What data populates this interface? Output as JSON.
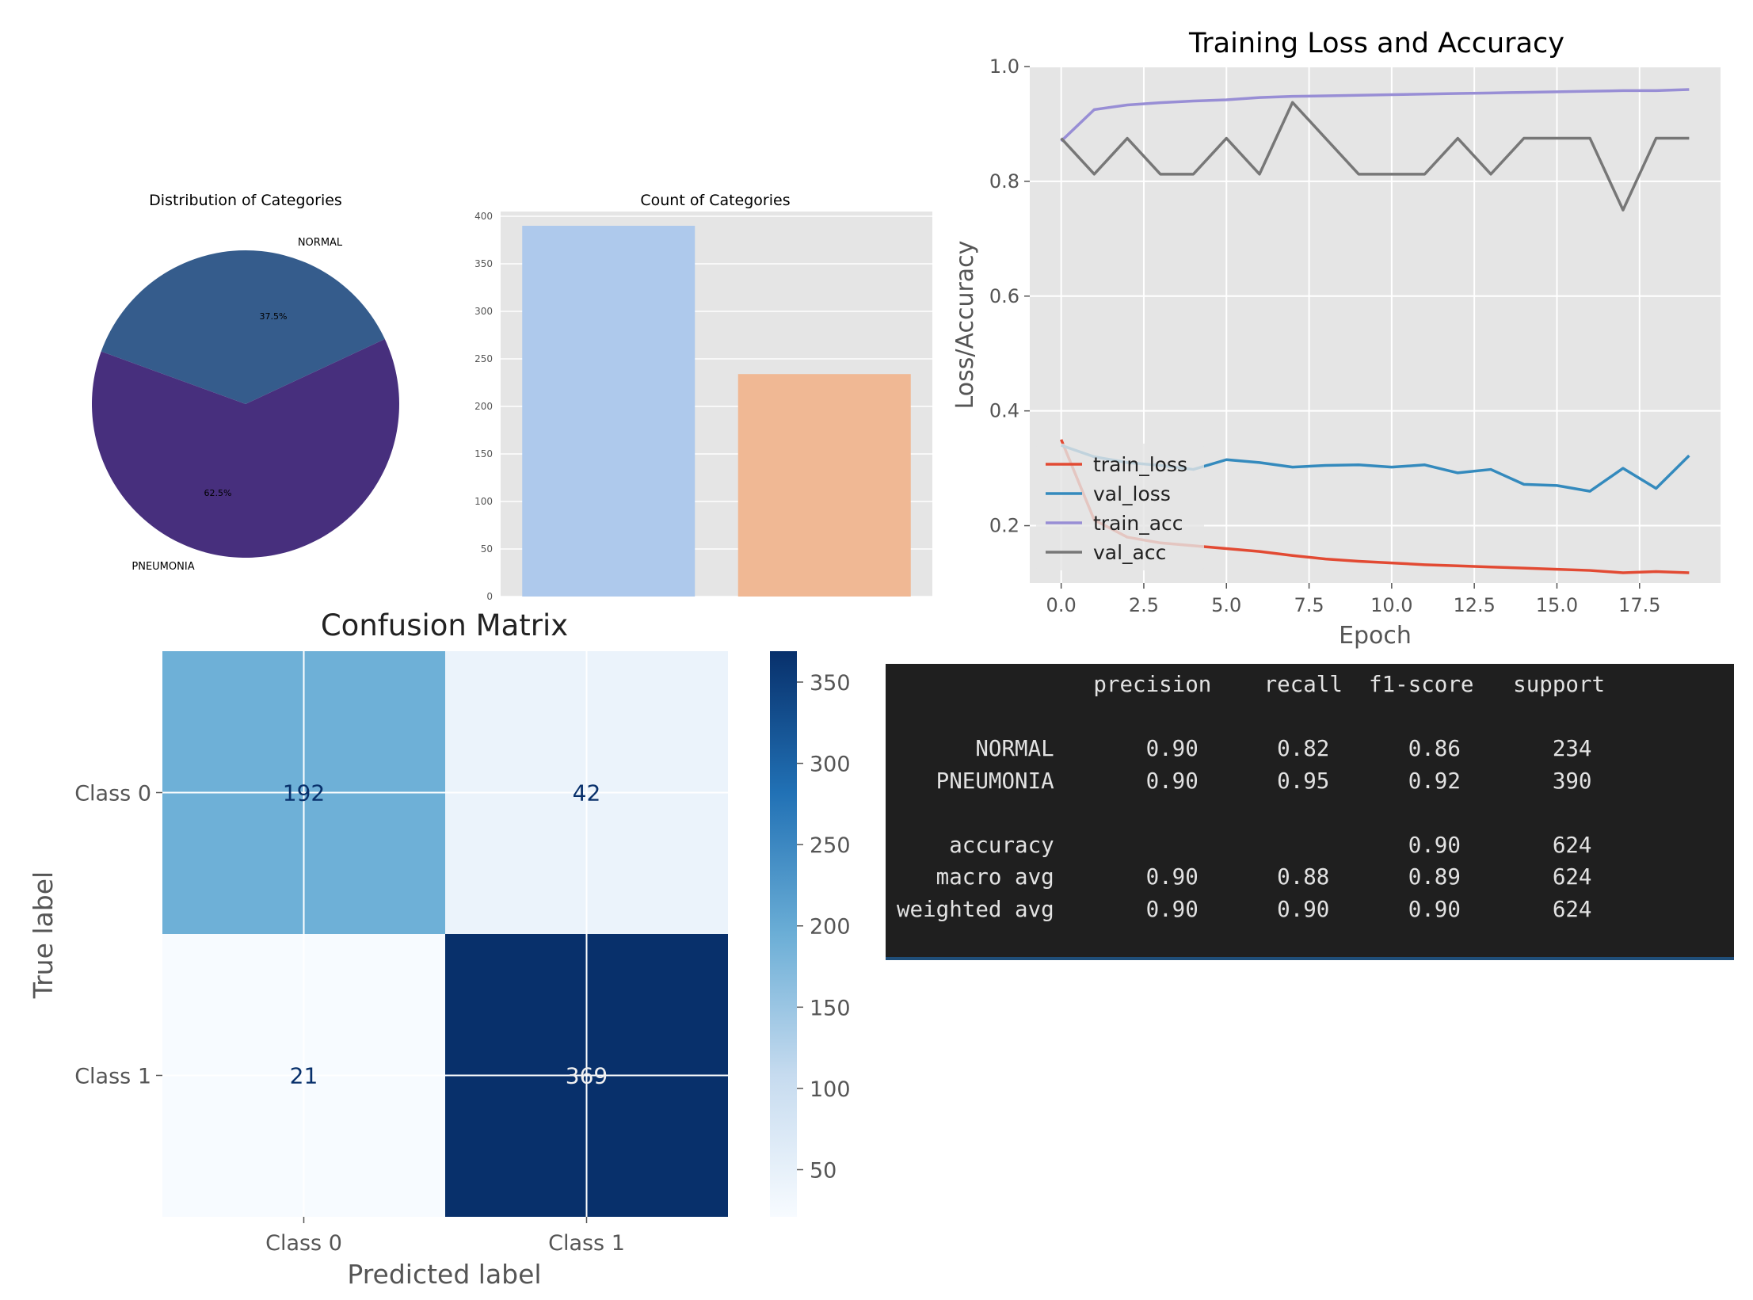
{
  "chart_data": [
    {
      "id": "pie",
      "type": "pie",
      "title": "Distribution of Categories",
      "labels": [
        "NORMAL",
        "PNEUMONIA"
      ],
      "values": [
        37.5,
        62.5
      ],
      "value_labels": [
        "37.5%",
        "62.5%"
      ],
      "colors": [
        "#355c8c",
        "#472f7d"
      ]
    },
    {
      "id": "bar",
      "type": "bar",
      "title": "Count of Categories",
      "categories": [
        "",
        ""
      ],
      "values": [
        390,
        234
      ],
      "colors": [
        "#aec9ec",
        "#f0b894"
      ],
      "ylim": [
        0,
        405
      ],
      "yticks": [
        0,
        50,
        100,
        150,
        200,
        250,
        300,
        350,
        400
      ],
      "ytick_labels": [
        "0",
        "50",
        "100",
        "150",
        "200",
        "250",
        "300",
        "350",
        "400"
      ],
      "grid": true
    },
    {
      "id": "lines",
      "type": "line",
      "title": "Training Loss and Accuracy",
      "xlabel": "Epoch",
      "ylabel": "Loss/Accuracy",
      "xlim": [
        -0.95,
        19.95
      ],
      "ylim": [
        0.1,
        1.0
      ],
      "xticks": [
        0,
        2.5,
        5,
        7.5,
        10,
        12.5,
        15,
        17.5
      ],
      "xtick_labels": [
        "0.0",
        "2.5",
        "5.0",
        "7.5",
        "10.0",
        "12.5",
        "15.0",
        "17.5"
      ],
      "yticks": [
        0.2,
        0.4,
        0.6,
        0.8,
        1.0
      ],
      "ytick_labels": [
        "0.2",
        "0.4",
        "0.6",
        "0.8",
        "1.0"
      ],
      "x": [
        0,
        1,
        2,
        3,
        4,
        5,
        6,
        7,
        8,
        9,
        10,
        11,
        12,
        13,
        14,
        15,
        16,
        17,
        18,
        19
      ],
      "grid": true,
      "legend_position": "lower-left",
      "series": [
        {
          "name": "train_loss",
          "color": "#e24a33",
          "values": [
            0.35,
            0.21,
            0.18,
            0.17,
            0.165,
            0.16,
            0.155,
            0.148,
            0.142,
            0.138,
            0.135,
            0.132,
            0.13,
            0.128,
            0.126,
            0.124,
            0.122,
            0.118,
            0.12,
            0.118
          ]
        },
        {
          "name": "val_loss",
          "color": "#348abd",
          "values": [
            0.34,
            0.32,
            0.31,
            0.305,
            0.298,
            0.315,
            0.31,
            0.302,
            0.305,
            0.306,
            0.302,
            0.306,
            0.292,
            0.298,
            0.272,
            0.27,
            0.26,
            0.3,
            0.265,
            0.322
          ]
        },
        {
          "name": "train_acc",
          "color": "#988ed5",
          "values": [
            0.87,
            0.925,
            0.933,
            0.937,
            0.94,
            0.942,
            0.946,
            0.948,
            0.949,
            0.95,
            0.951,
            0.952,
            0.953,
            0.954,
            0.955,
            0.956,
            0.957,
            0.958,
            0.958,
            0.96
          ]
        },
        {
          "name": "val_acc",
          "color": "#777777",
          "values": [
            0.875,
            0.8125,
            0.875,
            0.8125,
            0.8125,
            0.875,
            0.8125,
            0.9375,
            0.875,
            0.8125,
            0.8125,
            0.8125,
            0.875,
            0.8125,
            0.875,
            0.875,
            0.875,
            0.75,
            0.875,
            0.875
          ]
        }
      ]
    },
    {
      "id": "cm",
      "type": "heatmap",
      "title": "Confusion Matrix",
      "xlabel": "Predicted label",
      "ylabel": "True label",
      "x_categories": [
        "Class 0",
        "Class 1"
      ],
      "y_categories": [
        "Class 0",
        "Class 1"
      ],
      "matrix": [
        [
          192,
          42
        ],
        [
          21,
          369
        ]
      ],
      "colorbar_ticks": [
        50,
        100,
        150,
        200,
        250,
        300,
        350
      ],
      "colorbar_range": [
        21,
        369
      ],
      "colormap": "Blues"
    }
  ],
  "report": {
    "lines": [
      "               precision    recall  f1-score   support",
      "",
      "      NORMAL       0.90      0.82      0.86       234",
      "   PNEUMONIA       0.90      0.95      0.92       390",
      "",
      "    accuracy                           0.90       624",
      "   macro avg       0.90      0.88      0.89       624",
      "weighted avg       0.90      0.90      0.90       624"
    ]
  }
}
